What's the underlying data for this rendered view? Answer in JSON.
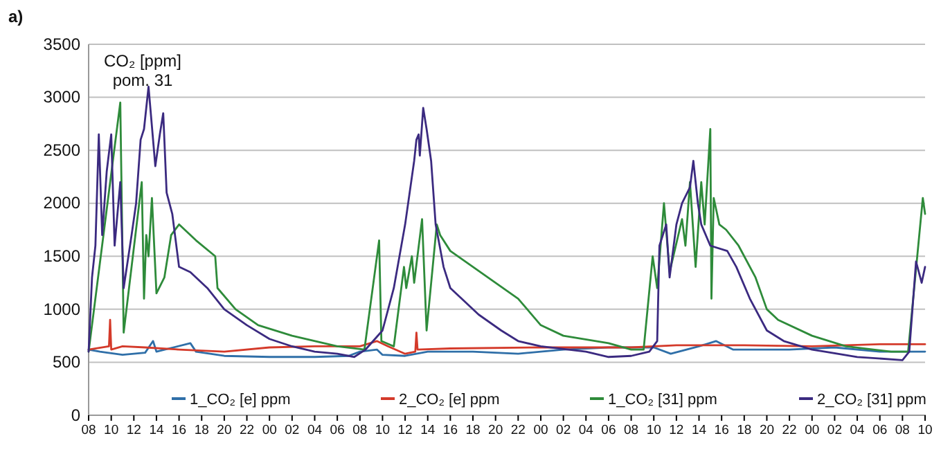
{
  "chart_data": {
    "type": "line",
    "title": "CO₂ [ppm]",
    "subtitle": "pom. 31",
    "annotations": [
      "a)"
    ],
    "xlim": [
      8,
      82
    ],
    "xticks": [
      {
        "value": 8,
        "label": "08"
      },
      {
        "value": 10,
        "label": "10"
      },
      {
        "value": 12,
        "label": "12"
      },
      {
        "value": 14,
        "label": "14"
      },
      {
        "value": 16,
        "label": "16"
      },
      {
        "value": 18,
        "label": "18"
      },
      {
        "value": 20,
        "label": "20"
      },
      {
        "value": 22,
        "label": "22"
      },
      {
        "value": 24,
        "label": "00"
      },
      {
        "value": 26,
        "label": "02"
      },
      {
        "value": 28,
        "label": "04"
      },
      {
        "value": 30,
        "label": "06"
      },
      {
        "value": 32,
        "label": "08"
      },
      {
        "value": 34,
        "label": "10"
      },
      {
        "value": 36,
        "label": "12"
      },
      {
        "value": 38,
        "label": "14"
      },
      {
        "value": 40,
        "label": "16"
      },
      {
        "value": 42,
        "label": "18"
      },
      {
        "value": 44,
        "label": "20"
      },
      {
        "value": 46,
        "label": "22"
      },
      {
        "value": 48,
        "label": "00"
      },
      {
        "value": 50,
        "label": "02"
      },
      {
        "value": 52,
        "label": "04"
      },
      {
        "value": 54,
        "label": "06"
      },
      {
        "value": 56,
        "label": "08"
      },
      {
        "value": 58,
        "label": "10"
      },
      {
        "value": 60,
        "label": "12"
      },
      {
        "value": 62,
        "label": "14"
      },
      {
        "value": 64,
        "label": "16"
      },
      {
        "value": 66,
        "label": "18"
      },
      {
        "value": 68,
        "label": "20"
      },
      {
        "value": 70,
        "label": "22"
      },
      {
        "value": 72,
        "label": "00"
      },
      {
        "value": 74,
        "label": "02"
      },
      {
        "value": 76,
        "label": "04"
      },
      {
        "value": 78,
        "label": "06"
      },
      {
        "value": 80,
        "label": "08"
      },
      {
        "value": 82,
        "label": "10"
      }
    ],
    "ylim": [
      0,
      3500
    ],
    "yticks": [
      0,
      500,
      1000,
      1500,
      2000,
      2500,
      3000,
      3500
    ],
    "grid": "y",
    "legend": "bottom",
    "line_style": "solid",
    "marker": "none",
    "series": [
      {
        "name": "1_CO₂ [e] ppm",
        "color": "#2f6fa8",
        "x": [
          8,
          9,
          11,
          13,
          13.7,
          14,
          17,
          17.5,
          20,
          24,
          28,
          31,
          32,
          33.5,
          34,
          36,
          38,
          42,
          46,
          50,
          54,
          58,
          59.5,
          62,
          63.5,
          65,
          70,
          74,
          78,
          82
        ],
        "values": [
          620,
          600,
          570,
          590,
          700,
          600,
          680,
          600,
          560,
          550,
          550,
          560,
          600,
          620,
          570,
          560,
          600,
          600,
          580,
          620,
          640,
          640,
          580,
          650,
          700,
          620,
          620,
          640,
          600,
          600
        ]
      },
      {
        "name": "2_CO₂ [e] ppm",
        "color": "#d43a2a",
        "x": [
          8,
          9.8,
          9.9,
          10,
          11,
          13,
          16,
          20,
          24,
          28,
          32,
          33.5,
          34.5,
          36,
          36.9,
          37,
          37.1,
          40,
          48,
          56,
          60,
          66,
          72,
          78,
          82
        ],
        "values": [
          620,
          650,
          900,
          620,
          650,
          640,
          620,
          600,
          640,
          650,
          650,
          700,
          650,
          580,
          600,
          780,
          620,
          630,
          640,
          640,
          660,
          660,
          650,
          670,
          670
        ]
      },
      {
        "name": "1_CO₂ [31] ppm",
        "color": "#2e8b3a",
        "x": [
          8,
          10.8,
          11.1,
          12.7,
          12.9,
          13.1,
          13.3,
          13.6,
          14,
          14.7,
          15.3,
          16,
          17.5,
          19.2,
          19.4,
          21,
          23,
          26,
          30,
          32.4,
          33.7,
          33.9,
          35,
          35.9,
          36.1,
          36.6,
          36.8,
          37.5,
          37.9,
          38.8,
          39.1,
          40,
          42,
          46,
          48,
          50,
          54,
          56,
          57.1,
          57.9,
          58.3,
          58.9,
          59.4,
          60.5,
          60.8,
          61.2,
          61.7,
          62.2,
          62.5,
          63,
          63.1,
          63.3,
          63.8,
          64.4,
          65.5,
          67,
          68,
          69,
          72,
          75,
          79,
          80.5,
          81.8,
          82
        ],
        "values": [
          600,
          2950,
          780,
          2200,
          1100,
          1700,
          1500,
          2050,
          1150,
          1300,
          1700,
          1800,
          1650,
          1500,
          1200,
          1000,
          850,
          750,
          650,
          620,
          1650,
          700,
          650,
          1400,
          1200,
          1500,
          1250,
          1850,
          800,
          1800,
          1700,
          1550,
          1400,
          1100,
          850,
          750,
          680,
          620,
          620,
          1500,
          1200,
          2000,
          1350,
          1850,
          1600,
          2200,
          1400,
          2200,
          1800,
          2700,
          1100,
          2050,
          1800,
          1750,
          1600,
          1300,
          1000,
          900,
          750,
          650,
          600,
          600,
          2050,
          1900
        ]
      },
      {
        "name": "2_CO₂ [31] ppm",
        "color": "#3b2a80",
        "x": [
          8,
          8.3,
          8.6,
          8.9,
          9.2,
          9.6,
          10,
          10.3,
          10.8,
          11.1,
          11.8,
          12.2,
          12.6,
          12.9,
          13.3,
          13.5,
          13.9,
          14.3,
          14.6,
          14.9,
          15.4,
          16,
          17,
          18.5,
          20,
          22,
          24,
          26,
          28,
          30,
          31.5,
          32.5,
          34,
          35,
          36,
          36.8,
          37,
          37.2,
          37.3,
          37.6,
          37.9,
          38.3,
          38.7,
          39.4,
          40,
          41,
          42.5,
          44.5,
          46,
          48,
          52,
          54,
          56,
          57.6,
          58.3,
          58.5,
          59.1,
          59.4,
          60,
          60.5,
          61.2,
          61.5,
          61.9,
          62.2,
          63,
          64.5,
          65.3,
          66.5,
          68,
          69.5,
          72,
          76,
          80,
          80.6,
          81.2,
          81.7,
          82
        ],
        "values": [
          600,
          1300,
          1600,
          2650,
          1700,
          2300,
          2650,
          1600,
          2200,
          1200,
          1700,
          2000,
          2600,
          2700,
          3100,
          2850,
          2350,
          2650,
          2850,
          2100,
          1900,
          1400,
          1350,
          1200,
          1000,
          850,
          720,
          650,
          600,
          580,
          550,
          620,
          800,
          1200,
          1800,
          2400,
          2600,
          2650,
          2450,
          2900,
          2700,
          2400,
          1800,
          1400,
          1200,
          1100,
          950,
          800,
          700,
          650,
          600,
          550,
          560,
          600,
          700,
          1600,
          1800,
          1300,
          1800,
          2000,
          2150,
          2400,
          2000,
          1800,
          1600,
          1550,
          1400,
          1100,
          800,
          700,
          620,
          550,
          520,
          600,
          1450,
          1250,
          1400
        ]
      }
    ]
  }
}
